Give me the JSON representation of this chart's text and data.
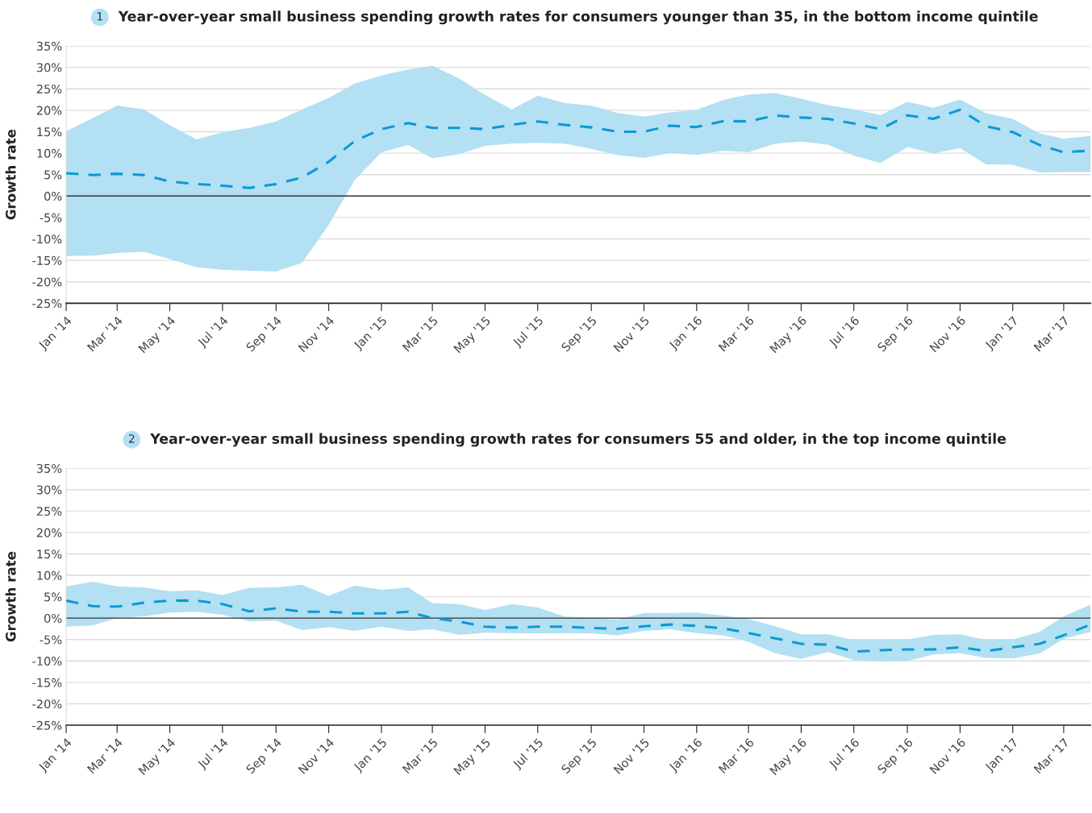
{
  "chart_data": [
    {
      "type": "line",
      "title": "Year-over-year small business spending growth rates for consumers younger than 35, in the bottom income quintile",
      "ylabel": "Growth rate",
      "annotations": [
        "1"
      ],
      "x": [
        "2014-01",
        "2014-02",
        "2014-03",
        "2014-04",
        "2014-05",
        "2014-06",
        "2014-07",
        "2014-08",
        "2014-09",
        "2014-10",
        "2014-11",
        "2014-12",
        "2015-01",
        "2015-02",
        "2015-03",
        "2015-04",
        "2015-05",
        "2015-06",
        "2015-07",
        "2015-08",
        "2015-09",
        "2015-10",
        "2015-11",
        "2015-12",
        "2016-01",
        "2016-02",
        "2016-03",
        "2016-04",
        "2016-05",
        "2016-06",
        "2016-07",
        "2016-08",
        "2016-09",
        "2016-10",
        "2016-11",
        "2016-12",
        "2017-01",
        "2017-02",
        "2017-03",
        "2017-04"
      ],
      "series": [
        {
          "color": "#0a9ad6",
          "values": [
            5.3,
            4.9,
            5.2,
            4.9,
            3.4,
            2.8,
            2.4,
            1.9,
            2.8,
            4.3,
            8.0,
            12.8,
            15.6,
            17.0,
            15.9,
            15.9,
            15.6,
            16.6,
            17.4,
            16.6,
            16.0,
            15.0,
            15.0,
            16.4,
            16.1,
            17.5,
            17.4,
            18.8,
            18.3,
            18.0,
            16.9,
            15.6,
            18.8,
            18.0,
            20.1,
            16.3,
            14.9,
            11.9,
            10.2,
            10.6
          ],
          "upper": [
            15.1,
            18.2,
            21.1,
            20.2,
            16.5,
            13.2,
            14.9,
            15.9,
            17.4,
            20.2,
            22.9,
            26.2,
            28.1,
            29.5,
            30.4,
            27.4,
            23.6,
            20.2,
            23.4,
            21.7,
            21.1,
            19.4,
            18.5,
            19.5,
            20.1,
            22.4,
            23.7,
            24.0,
            22.7,
            21.2,
            20.2,
            18.9,
            22.0,
            20.6,
            22.5,
            19.3,
            18.0,
            14.6,
            13.4,
            14.0
          ],
          "lower": [
            -14.0,
            -13.9,
            -13.3,
            -13.0,
            -14.7,
            -16.6,
            -17.2,
            -17.4,
            -17.6,
            -15.6,
            -6.7,
            3.7,
            10.2,
            11.9,
            8.8,
            9.8,
            11.7,
            12.2,
            12.4,
            12.2,
            11.0,
            9.6,
            8.9,
            10.0,
            9.6,
            10.6,
            10.2,
            12.2,
            12.7,
            12.0,
            9.4,
            7.7,
            11.4,
            9.9,
            11.2,
            7.4,
            7.3,
            5.5,
            5.6,
            5.6
          ]
        }
      ],
      "line_style": "dashed",
      "marker": "none",
      "grid": "y",
      "ylim": [
        -25,
        35
      ],
      "yticks": [
        {
          "value": -25,
          "label": "-25%"
        },
        {
          "value": -20,
          "label": "-20%"
        },
        {
          "value": -15,
          "label": "-15%"
        },
        {
          "value": -10,
          "label": "-10%"
        },
        {
          "value": -5,
          "label": "-5%"
        },
        {
          "value": 0,
          "label": "0%"
        },
        {
          "value": 5,
          "label": "5%"
        },
        {
          "value": 10,
          "label": "10%"
        },
        {
          "value": 15,
          "label": "15%"
        },
        {
          "value": 20,
          "label": "20%"
        },
        {
          "value": 25,
          "label": "25%"
        },
        {
          "value": 30,
          "label": "30%"
        },
        {
          "value": 35,
          "label": "35%"
        }
      ],
      "xlim": [
        "2014-01",
        "2017-04"
      ],
      "xticks": [
        {
          "value": "2014-01",
          "label": "Jan '14"
        },
        {
          "value": "2014-03",
          "label": "Mar '14"
        },
        {
          "value": "2014-05",
          "label": "May '14"
        },
        {
          "value": "2014-07",
          "label": "Jul '14"
        },
        {
          "value": "2014-09",
          "label": "Sep '14"
        },
        {
          "value": "2014-11",
          "label": "Nov '14"
        },
        {
          "value": "2015-01",
          "label": "Jan '15"
        },
        {
          "value": "2015-03",
          "label": "Mar '15"
        },
        {
          "value": "2015-05",
          "label": "May '15"
        },
        {
          "value": "2015-07",
          "label": "Jul '15"
        },
        {
          "value": "2015-09",
          "label": "Sep '15"
        },
        {
          "value": "2015-11",
          "label": "Nov '15"
        },
        {
          "value": "2016-01",
          "label": "Jan '16"
        },
        {
          "value": "2016-03",
          "label": "Mar '16"
        },
        {
          "value": "2016-05",
          "label": "May '16"
        },
        {
          "value": "2016-07",
          "label": "Jul '16"
        },
        {
          "value": "2016-09",
          "label": "Sep '16"
        },
        {
          "value": "2016-11",
          "label": "Nov '16"
        },
        {
          "value": "2017-01",
          "label": "Jan '17"
        },
        {
          "value": "2017-03",
          "label": "Mar '17"
        }
      ],
      "ref_lines": [
        {
          "axis": "y",
          "value": 0,
          "color": "#333333"
        }
      ]
    },
    {
      "type": "line",
      "title": "Year-over-year small business spending growth rates for consumers 55 and older, in the top income quintile",
      "ylabel": "Growth rate",
      "annotations": [
        "2"
      ],
      "x": [
        "2014-01",
        "2014-02",
        "2014-03",
        "2014-04",
        "2014-05",
        "2014-06",
        "2014-07",
        "2014-08",
        "2014-09",
        "2014-10",
        "2014-11",
        "2014-12",
        "2015-01",
        "2015-02",
        "2015-03",
        "2015-04",
        "2015-05",
        "2015-06",
        "2015-07",
        "2015-08",
        "2015-09",
        "2015-10",
        "2015-11",
        "2015-12",
        "2016-01",
        "2016-02",
        "2016-03",
        "2016-04",
        "2016-05",
        "2016-06",
        "2016-07",
        "2016-08",
        "2016-09",
        "2016-10",
        "2016-11",
        "2016-12",
        "2017-01",
        "2017-02",
        "2017-03",
        "2017-04"
      ],
      "series": [
        {
          "color": "#0a9ad6",
          "values": [
            4.1,
            2.8,
            2.7,
            3.6,
            4.1,
            4.1,
            3.3,
            1.6,
            2.3,
            1.5,
            1.5,
            1.1,
            1.1,
            1.5,
            0.0,
            -0.8,
            -2.0,
            -2.2,
            -2.0,
            -2.0,
            -2.3,
            -2.5,
            -1.9,
            -1.5,
            -1.8,
            -2.4,
            -3.5,
            -4.7,
            -6.0,
            -6.2,
            -7.8,
            -7.5,
            -7.3,
            -7.3,
            -6.8,
            -7.7,
            -6.8,
            -6.0,
            -4.0,
            -1.5
          ],
          "upper": [
            7.4,
            8.5,
            7.4,
            7.2,
            6.3,
            6.5,
            5.4,
            7.1,
            7.2,
            7.8,
            5.2,
            7.6,
            6.6,
            7.2,
            3.5,
            3.3,
            1.9,
            3.3,
            2.5,
            0.4,
            0.1,
            -0.3,
            1.2,
            1.2,
            1.3,
            0.6,
            -0.2,
            -1.9,
            -3.8,
            -3.8,
            -5.1,
            -5.1,
            -5.0,
            -3.9,
            -3.8,
            -5.1,
            -5.0,
            -3.2,
            0.4,
            3.2
          ],
          "lower": [
            -2.0,
            -1.7,
            0.1,
            0.4,
            1.3,
            1.5,
            0.8,
            -0.7,
            -0.6,
            -2.8,
            -2.1,
            -3.0,
            -2.0,
            -3.0,
            -2.6,
            -3.9,
            -3.4,
            -3.5,
            -3.6,
            -3.5,
            -3.6,
            -4.0,
            -3.0,
            -2.6,
            -3.5,
            -4.0,
            -5.5,
            -8.2,
            -9.5,
            -7.9,
            -9.8,
            -10.1,
            -10.0,
            -8.5,
            -8.2,
            -9.3,
            -9.4,
            -8.3,
            -4.8,
            -3.2
          ]
        }
      ],
      "line_style": "dashed",
      "marker": "none",
      "grid": "y",
      "ylim": [
        -25,
        35
      ],
      "yticks": [
        {
          "value": -25,
          "label": "-25%"
        },
        {
          "value": -20,
          "label": "-20%"
        },
        {
          "value": -15,
          "label": "-15%"
        },
        {
          "value": -10,
          "label": "-10%"
        },
        {
          "value": -5,
          "label": "-5%"
        },
        {
          "value": 0,
          "label": "0%"
        },
        {
          "value": 5,
          "label": "5%"
        },
        {
          "value": 10,
          "label": "10%"
        },
        {
          "value": 15,
          "label": "15%"
        },
        {
          "value": 20,
          "label": "20%"
        },
        {
          "value": 25,
          "label": "25%"
        },
        {
          "value": 30,
          "label": "30%"
        },
        {
          "value": 35,
          "label": "35%"
        }
      ],
      "xlim": [
        "2014-01",
        "2017-04"
      ],
      "xticks": [
        {
          "value": "2014-01",
          "label": "Jan '14"
        },
        {
          "value": "2014-03",
          "label": "Mar '14"
        },
        {
          "value": "2014-05",
          "label": "May '14"
        },
        {
          "value": "2014-07",
          "label": "Jul '14"
        },
        {
          "value": "2014-09",
          "label": "Sep '14"
        },
        {
          "value": "2014-11",
          "label": "Nov '14"
        },
        {
          "value": "2015-01",
          "label": "Jan '15"
        },
        {
          "value": "2015-03",
          "label": "Mar '15"
        },
        {
          "value": "2015-05",
          "label": "May '15"
        },
        {
          "value": "2015-07",
          "label": "Jul '15"
        },
        {
          "value": "2015-09",
          "label": "Sep '15"
        },
        {
          "value": "2015-11",
          "label": "Nov '15"
        },
        {
          "value": "2016-01",
          "label": "Jan '16"
        },
        {
          "value": "2016-03",
          "label": "Mar '16"
        },
        {
          "value": "2016-05",
          "label": "May '16"
        },
        {
          "value": "2016-07",
          "label": "Jul '16"
        },
        {
          "value": "2016-09",
          "label": "Sep '16"
        },
        {
          "value": "2016-11",
          "label": "Nov '16"
        },
        {
          "value": "2017-01",
          "label": "Jan '17"
        },
        {
          "value": "2017-03",
          "label": "Mar '17"
        }
      ],
      "ref_lines": [
        {
          "axis": "y",
          "value": 0,
          "color": "#333333"
        }
      ]
    }
  ]
}
